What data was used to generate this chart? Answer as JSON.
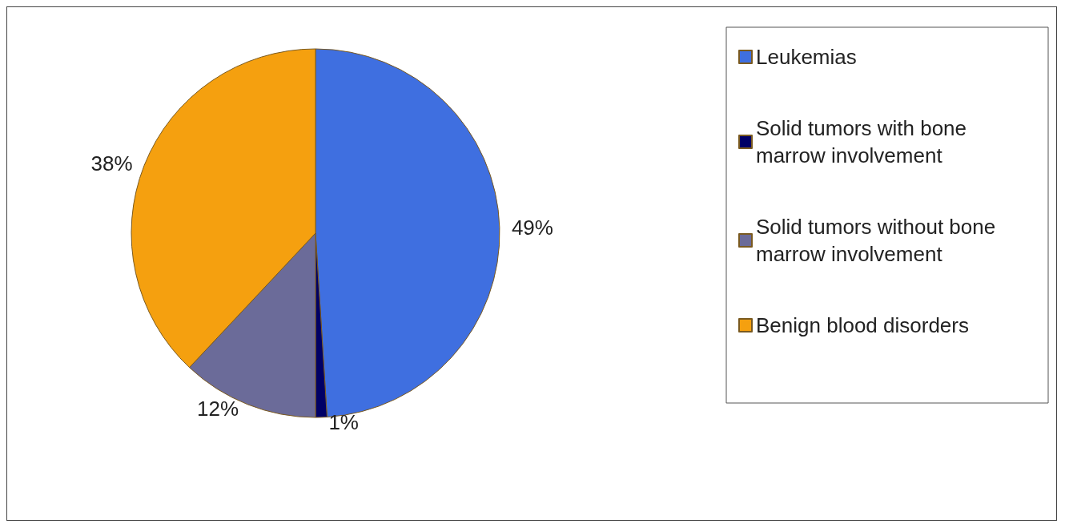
{
  "chart_data": {
    "type": "pie",
    "categories": [
      "Leukemias",
      "Solid tumors with bone marrow involvement",
      "Solid tumors without bone marrow involvement",
      "Benign blood disorders"
    ],
    "values": [
      49,
      1,
      12,
      38
    ],
    "value_labels": [
      "49%",
      "1%",
      "12%",
      "38%"
    ],
    "colors": [
      "#3f6fe0",
      "#000066",
      "#6b6b99",
      "#f5a00f"
    ],
    "legend": "right"
  }
}
